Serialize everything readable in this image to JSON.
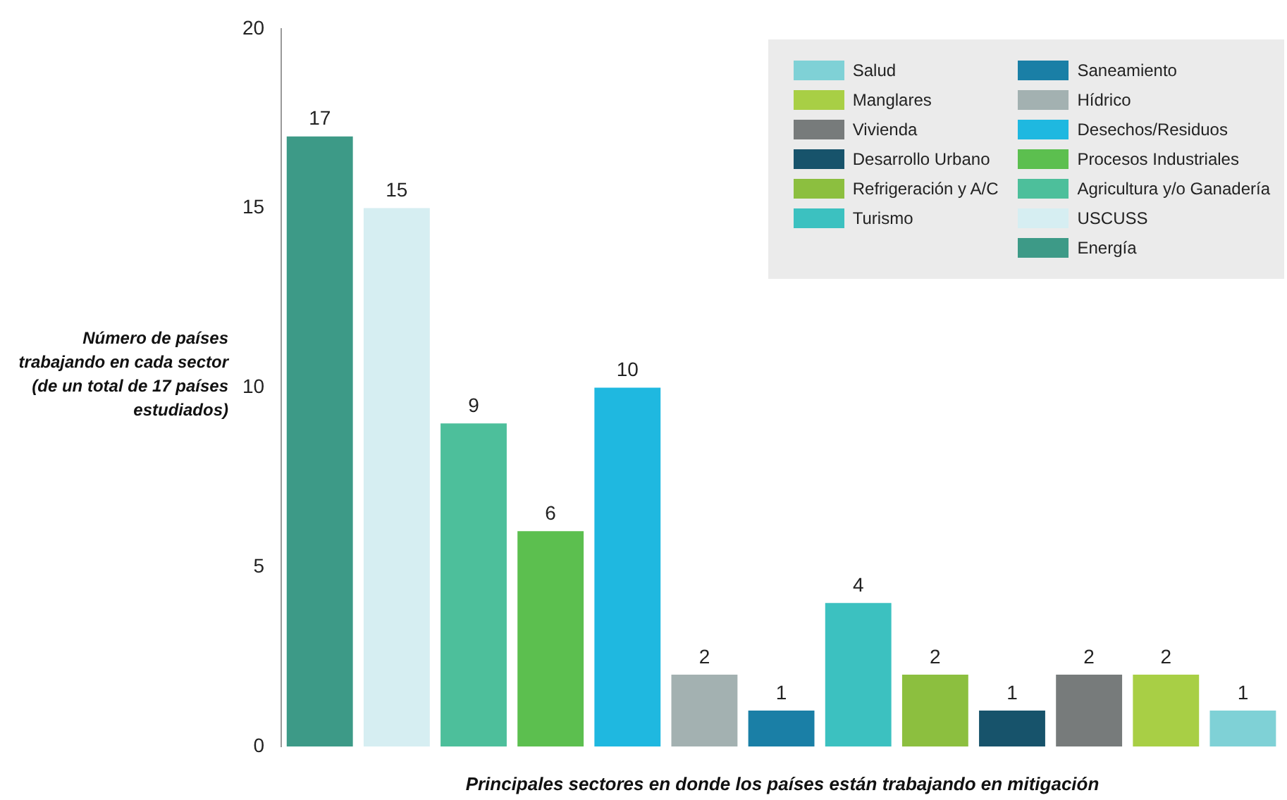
{
  "chart_data": {
    "type": "bar",
    "xlabel": "Principales sectores en donde los países están trabajando en mitigación",
    "ylabel": "Número de países trabajando en cada sector (de un total de 17 países estudiados)",
    "categories": [
      null,
      null,
      null,
      null,
      null,
      null,
      null,
      null,
      null,
      null,
      null,
      null,
      null
    ],
    "stacked": true,
    "series": [
      {
        "name": "Energía",
        "color": "#3d9a87",
        "values": [
          17,
          null,
          null,
          null,
          null,
          null,
          null,
          null,
          null,
          null,
          null,
          null,
          null
        ]
      },
      {
        "name": "USCUSS",
        "color": "#d6eef2",
        "values": [
          null,
          15,
          null,
          null,
          null,
          null,
          null,
          null,
          null,
          null,
          null,
          null,
          null
        ]
      },
      {
        "name": "Agricultura y/o Ganadería",
        "color": "#4dbf9b",
        "values": [
          null,
          null,
          9,
          null,
          null,
          null,
          null,
          null,
          null,
          null,
          null,
          null,
          null
        ]
      },
      {
        "name": "Procesos Industriales",
        "color": "#5cbf4f",
        "values": [
          null,
          null,
          null,
          6,
          null,
          null,
          null,
          null,
          null,
          null,
          null,
          null,
          null
        ]
      },
      {
        "name": "Desechos/Residuos",
        "color": "#1fb8e0",
        "values": [
          null,
          null,
          null,
          null,
          10,
          null,
          null,
          null,
          null,
          null,
          null,
          null,
          null
        ]
      },
      {
        "name": "Hídrico",
        "color": "#a3b1b1",
        "values": [
          null,
          null,
          null,
          null,
          null,
          2,
          null,
          null,
          null,
          null,
          null,
          null,
          null
        ]
      },
      {
        "name": "Saneamiento",
        "color": "#1a7fa6",
        "values": [
          null,
          null,
          null,
          null,
          null,
          null,
          1,
          null,
          null,
          null,
          null,
          null,
          null
        ]
      },
      {
        "name": "Turismo",
        "color": "#3cc1c0",
        "values": [
          null,
          null,
          null,
          null,
          null,
          null,
          null,
          4,
          null,
          null,
          null,
          null,
          null
        ]
      },
      {
        "name": "Refrigeración y A/C",
        "color": "#8cbf3f",
        "values": [
          null,
          null,
          null,
          null,
          null,
          null,
          null,
          null,
          2,
          null,
          null,
          null,
          null
        ]
      },
      {
        "name": "Desarrollo Urbano",
        "color": "#17536b",
        "values": [
          null,
          null,
          null,
          null,
          null,
          null,
          null,
          null,
          null,
          1,
          null,
          null,
          null
        ]
      },
      {
        "name": "Vivienda",
        "color": "#777b7b",
        "values": [
          null,
          null,
          null,
          null,
          null,
          null,
          null,
          null,
          null,
          null,
          2,
          null,
          null
        ]
      },
      {
        "name": "Manglares",
        "color": "#a8cf45",
        "values": [
          null,
          null,
          null,
          null,
          null,
          null,
          null,
          null,
          null,
          null,
          null,
          2,
          null
        ]
      },
      {
        "name": "Salud",
        "color": "#7fd1d6",
        "values": [
          null,
          null,
          null,
          null,
          null,
          null,
          null,
          null,
          null,
          null,
          null,
          null,
          1
        ]
      }
    ],
    "ylim": [
      0,
      20
    ],
    "yticks": [
      0,
      5,
      10,
      15,
      20
    ],
    "grid": false,
    "legend": "top right",
    "data_labels": true
  }
}
